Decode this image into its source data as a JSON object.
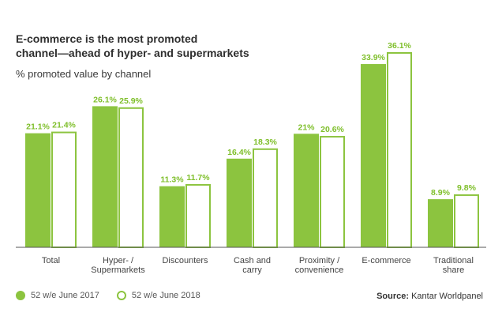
{
  "title_lines": [
    "E-commerce is the most promoted",
    "channel—ahead of hyper- and supermarkets"
  ],
  "subtitle": "% promoted value by channel",
  "source_label": "Source:",
  "source_text": "Kantar Worldpanel",
  "colors": {
    "series1": "#8cc43f",
    "series2": "#8cc43f",
    "series2_fill": "#ffffff",
    "label": "#7fbf2b",
    "axis": "#555555"
  },
  "chart_data": {
    "type": "bar",
    "categories": [
      [
        "Total"
      ],
      [
        "Hyper- /",
        "Supermarkets"
      ],
      [
        "Discounters"
      ],
      [
        "Cash and",
        "carry"
      ],
      [
        "Proximity /",
        "convenience"
      ],
      [
        "E-commerce"
      ],
      [
        "Traditional",
        "share"
      ]
    ],
    "series": [
      {
        "name": "52 w/e June 2017",
        "values": [
          21.1,
          26.1,
          11.3,
          16.4,
          21,
          33.9,
          8.9
        ],
        "labels": [
          "21.1%",
          "26.1%",
          "11.3%",
          "16.4%",
          "21%",
          "33.9%",
          "8.9%"
        ]
      },
      {
        "name": "52 w/e June 2018",
        "values": [
          21.4,
          25.9,
          11.7,
          18.3,
          20.6,
          36.1,
          9.8
        ],
        "labels": [
          "21.4%",
          "25.9%",
          "11.7%",
          "18.3%",
          "20.6%",
          "36.1%",
          "9.8%"
        ]
      }
    ],
    "ylim": [
      0,
      36.1
    ],
    "grid": false,
    "legend": "bottom-left"
  }
}
